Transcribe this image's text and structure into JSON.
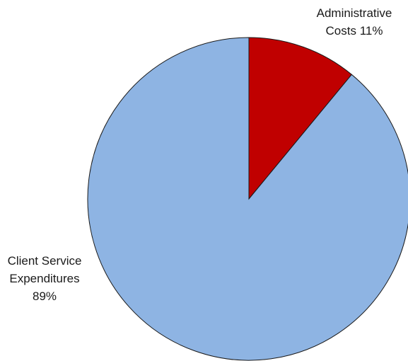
{
  "chart_data": {
    "type": "pie",
    "title": "",
    "slices": [
      {
        "label": "Administrative Costs",
        "value": 11,
        "color": "#C00000"
      },
      {
        "label": "Client Service Expenditures",
        "value": 89,
        "color": "#8EB4E3"
      }
    ],
    "labels": {
      "admin": {
        "line1": "Administrative",
        "line2": "Costs 11%"
      },
      "client": {
        "line1": "Client Service",
        "line2": "Expenditures",
        "line3": "89%"
      }
    },
    "start_angle": "12 o'clock",
    "direction": "clockwise",
    "legend": "none",
    "edge_color": "#1a1a1a"
  }
}
